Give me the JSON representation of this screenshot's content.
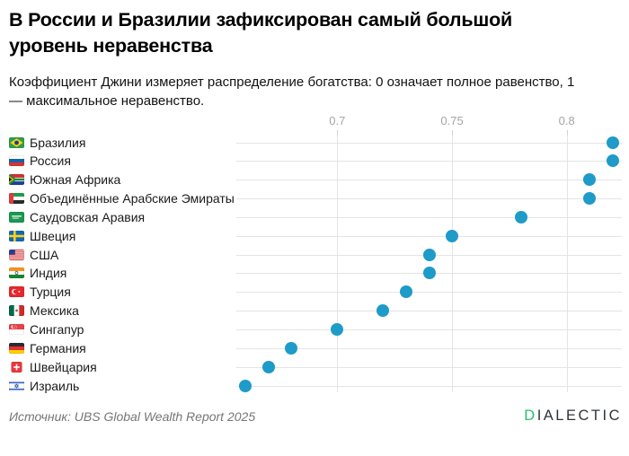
{
  "header": {
    "title_lines": [
      "В России и Бразилии зафиксирован самый большой",
      "уровень неравенства"
    ],
    "subtitle_lines": [
      "Коэффициент Джини измеряет распределение богатства: 0 означает полное равенство, 1",
      "— максимальное неравенство."
    ]
  },
  "footer": {
    "source": "Источник: UBS Global Wealth Report 2025",
    "logo": {
      "first_letter": "D",
      "rest": "IALECTIC",
      "accent_color": "#22c06e",
      "text_color": "#2f343a"
    }
  },
  "chart_data": {
    "type": "scatter",
    "subtype": "horizontal-dot-plot",
    "title": "В России и Бразилии зафиксирован самый большой уровень неравенства",
    "subtitle": "Коэффициент Джини измеряет распределение богатства: 0 означает полное равенство, 1 — максимальное неравенство.",
    "xlabel": "",
    "ylabel": "",
    "x_ticks": [
      0.7,
      0.75,
      0.8
    ],
    "x_tick_labels": [
      "0.7",
      "0.75",
      "0.8"
    ],
    "xlim": [
      0.656,
      0.824
    ],
    "grid": true,
    "legend": "none",
    "dot_color": "#1e9bc8",
    "gridline_color": "#e4e4e4",
    "categories": [
      "Бразилия",
      "Россия",
      "Южная Африка",
      "Объединённые Арабские Эмираты",
      "Саудовская Аравия",
      "Швеция",
      "США",
      "Индия",
      "Турция",
      "Мексика",
      "Сингапур",
      "Германия",
      "Швейцария",
      "Израиль"
    ],
    "flags": [
      "brazil",
      "russia",
      "south-africa",
      "uae",
      "saudi-arabia",
      "sweden",
      "usa",
      "india",
      "turkey",
      "mexico",
      "singapore",
      "germany",
      "switzerland",
      "israel"
    ],
    "values": [
      0.82,
      0.82,
      0.81,
      0.81,
      0.78,
      0.75,
      0.74,
      0.74,
      0.73,
      0.72,
      0.7,
      0.68,
      0.67,
      0.66
    ],
    "source": "Источник: UBS Global Wealth Report 2025"
  }
}
